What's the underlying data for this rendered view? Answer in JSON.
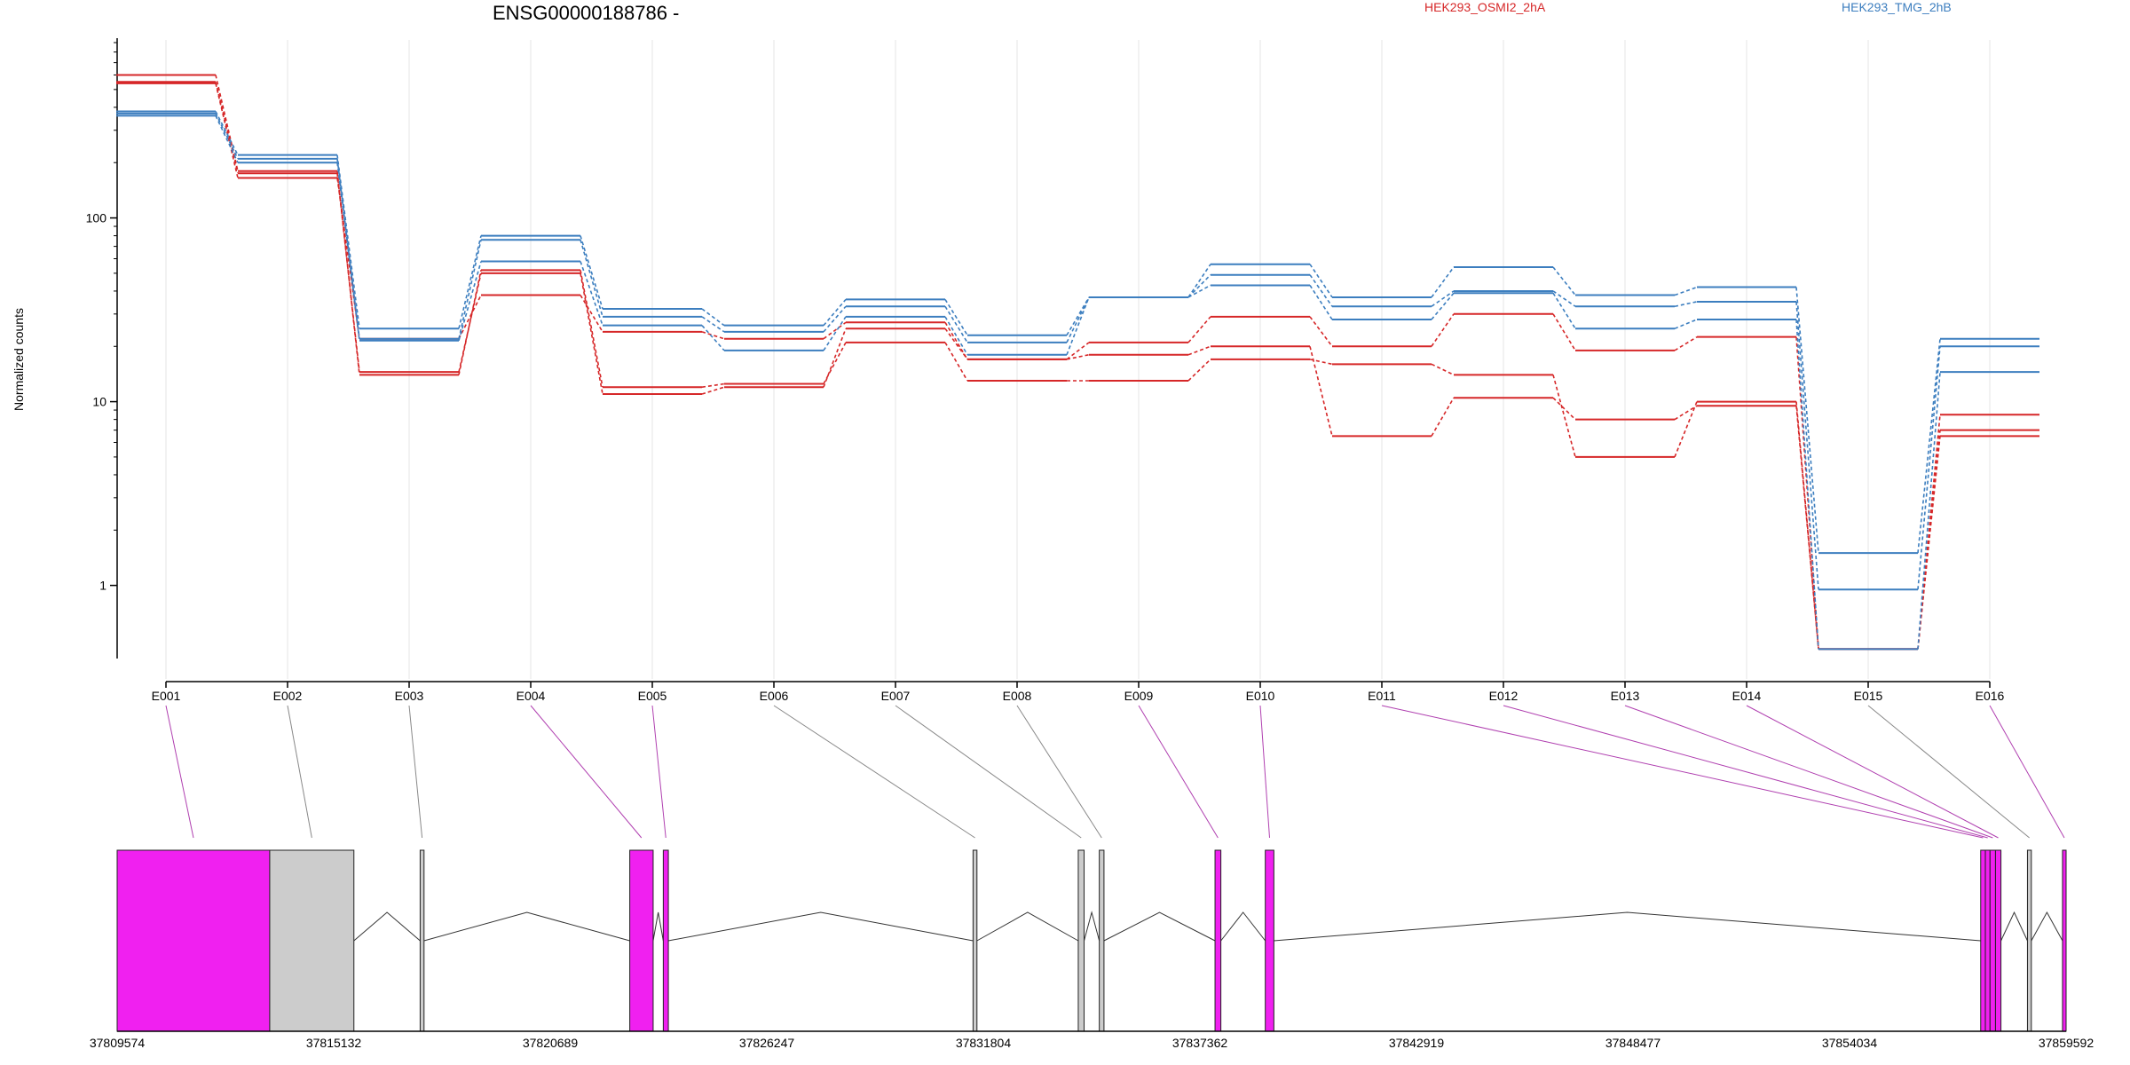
{
  "colors": {
    "HEK293_OSMI2_2hA": "#d62728",
    "HEK293_TMG_2hB": "#3c7ebf",
    "exon_highlight": "#f020f0",
    "exon_plain": "#cccccc",
    "connector_highlight": "#b040b0",
    "connector_plain": "#888888",
    "grid": "#e6e6e6"
  },
  "chart_data": {
    "type": "line",
    "title": "ENSG00000188786 -",
    "ylabel": "Normalized counts",
    "xlabel": "",
    "y_scale": "log",
    "y_ticks": [
      1,
      10,
      100
    ],
    "y_tick_labels": [
      "1",
      "10",
      "100"
    ],
    "ylim": [
      0.4,
      900
    ],
    "legend_placement": "top",
    "grid": "vertical",
    "categories": [
      "E001",
      "E002",
      "E003",
      "E004",
      "E005",
      "E006",
      "E007",
      "E008",
      "E009",
      "E010",
      "E011",
      "E012",
      "E013",
      "E014",
      "E015",
      "E016"
    ],
    "series": [
      {
        "group": "HEK293_OSMI2_2hA",
        "values": [
          600,
          180,
          14,
          52,
          12,
          12.5,
          21,
          13,
          13,
          17,
          16,
          14,
          5,
          10,
          0.45,
          7
        ]
      },
      {
        "group": "HEK293_OSMI2_2hA",
        "values": [
          550,
          175,
          14.5,
          50,
          11,
          12,
          25,
          17,
          18,
          20,
          6.5,
          10.5,
          8,
          9.5,
          0.45,
          6.5
        ]
      },
      {
        "group": "HEK293_OSMI2_2hA",
        "values": [
          540,
          165,
          22,
          38,
          24,
          22,
          27,
          17,
          21,
          29,
          20,
          30,
          19,
          22.5,
          0.45,
          8.5
        ]
      },
      {
        "group": "HEK293_TMG_2hB",
        "values": [
          380,
          220,
          25,
          80,
          32,
          26,
          36,
          23,
          37,
          56,
          37,
          54,
          38,
          42,
          1.5,
          22
        ]
      },
      {
        "group": "HEK293_TMG_2hB",
        "values": [
          370,
          210,
          22,
          76,
          29,
          24,
          33,
          21,
          37,
          49,
          33,
          40,
          33,
          35,
          0.95,
          20
        ]
      },
      {
        "group": "HEK293_TMG_2hB",
        "values": [
          360,
          200,
          21.5,
          58,
          26,
          19,
          29,
          18,
          37,
          43,
          28,
          39,
          25,
          28,
          0.45,
          14.5
        ]
      }
    ],
    "legend": [
      "HEK293_OSMI2_2hA",
      "HEK293_TMG_2hB"
    ]
  },
  "gene_model": {
    "coordinate_labels": [
      "37809574",
      "37815132",
      "37820689",
      "37826247",
      "37831804",
      "37837362",
      "37842919",
      "37848477",
      "37854034",
      "37859592"
    ],
    "exons": [
      {
        "label": "E001",
        "start": 37809574,
        "end": 37813490,
        "highlight": true
      },
      {
        "label": "E002",
        "start": 37813490,
        "end": 37815650,
        "highlight": false
      },
      {
        "label": "E003",
        "start": 37817350,
        "end": 37817450,
        "highlight": false
      },
      {
        "label": "E004",
        "start": 37822730,
        "end": 37823330,
        "highlight": true
      },
      {
        "label": "E005",
        "start": 37823590,
        "end": 37823720,
        "highlight": true
      },
      {
        "label": "E006",
        "start": 37831540,
        "end": 37831640,
        "highlight": false
      },
      {
        "label": "E007",
        "start": 37834240,
        "end": 37834390,
        "highlight": false
      },
      {
        "label": "E008",
        "start": 37834780,
        "end": 37834900,
        "highlight": false
      },
      {
        "label": "E009",
        "start": 37837750,
        "end": 37837900,
        "highlight": true
      },
      {
        "label": "E010",
        "start": 37839040,
        "end": 37839260,
        "highlight": true
      },
      {
        "label": "E011",
        "start": 37857400,
        "end": 37857520,
        "highlight": true
      },
      {
        "label": "E012",
        "start": 37857520,
        "end": 37857640,
        "highlight": true
      },
      {
        "label": "E013",
        "start": 37857640,
        "end": 37857780,
        "highlight": true
      },
      {
        "label": "E014",
        "start": 37857780,
        "end": 37857920,
        "highlight": true
      },
      {
        "label": "E015",
        "start": 37858600,
        "end": 37858700,
        "highlight": false
      },
      {
        "label": "E016",
        "start": 37859500,
        "end": 37859592,
        "highlight": true
      }
    ]
  }
}
